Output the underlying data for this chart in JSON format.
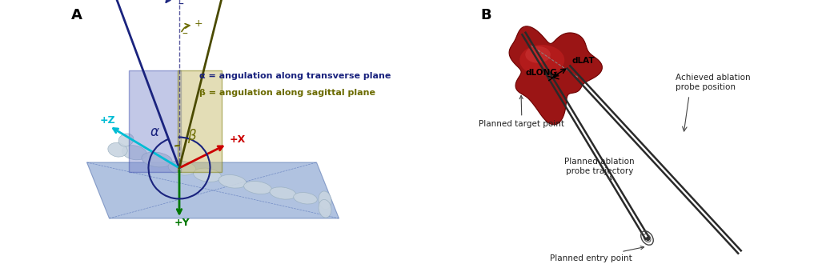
{
  "fig_width": 10.22,
  "fig_height": 3.5,
  "dpi": 100,
  "bg_color": "#ffffff",
  "panel_A": {
    "label": "A",
    "alpha_text": "α = angulation along transverse plane",
    "beta_text": "β = angulation along sagittal plane",
    "alpha_color": "#1a237e",
    "beta_color": "#6b6b00",
    "axis_z_color": "#00bcd4",
    "axis_x_color": "#cc0000",
    "axis_y_color": "#007700",
    "plane_trans_color": "#7986cb",
    "plane_sag_color": "#c8bd6e",
    "floor_color": "#7090c8",
    "body_color": "#c8d4e0",
    "needle1_color": "#1a237e",
    "needle2_color": "#4a4a00"
  },
  "panel_B": {
    "label": "B",
    "tumor_color": "#aa1111",
    "probe_color": "#333333",
    "text_color": "#222222"
  }
}
